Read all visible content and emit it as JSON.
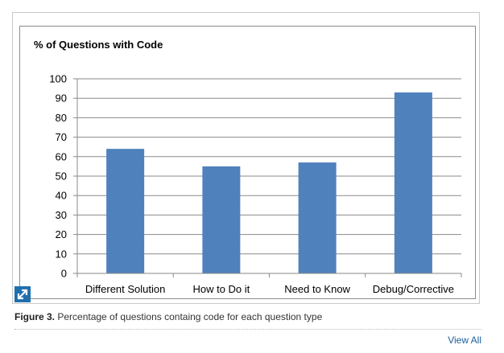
{
  "chart_data": {
    "type": "bar",
    "title": "% of Questions with Code",
    "categories": [
      "Different Solution",
      "How to Do it",
      "Need to Know",
      "Debug/Corrective"
    ],
    "values": [
      64,
      55,
      57,
      93
    ],
    "ylim": [
      0,
      100
    ],
    "yticks": [
      "0",
      "10",
      "20",
      "30",
      "40",
      "50",
      "60",
      "70",
      "80",
      "90",
      "100"
    ],
    "grid": true,
    "legend": "none",
    "bar_color": "#4f81bd"
  },
  "caption": {
    "label": "Figure 3.",
    "text": " Percentage of questions containg code for each question type"
  },
  "footer": {
    "view_all": "View All"
  },
  "icons": {
    "expand": "expand-arrow-icon"
  }
}
